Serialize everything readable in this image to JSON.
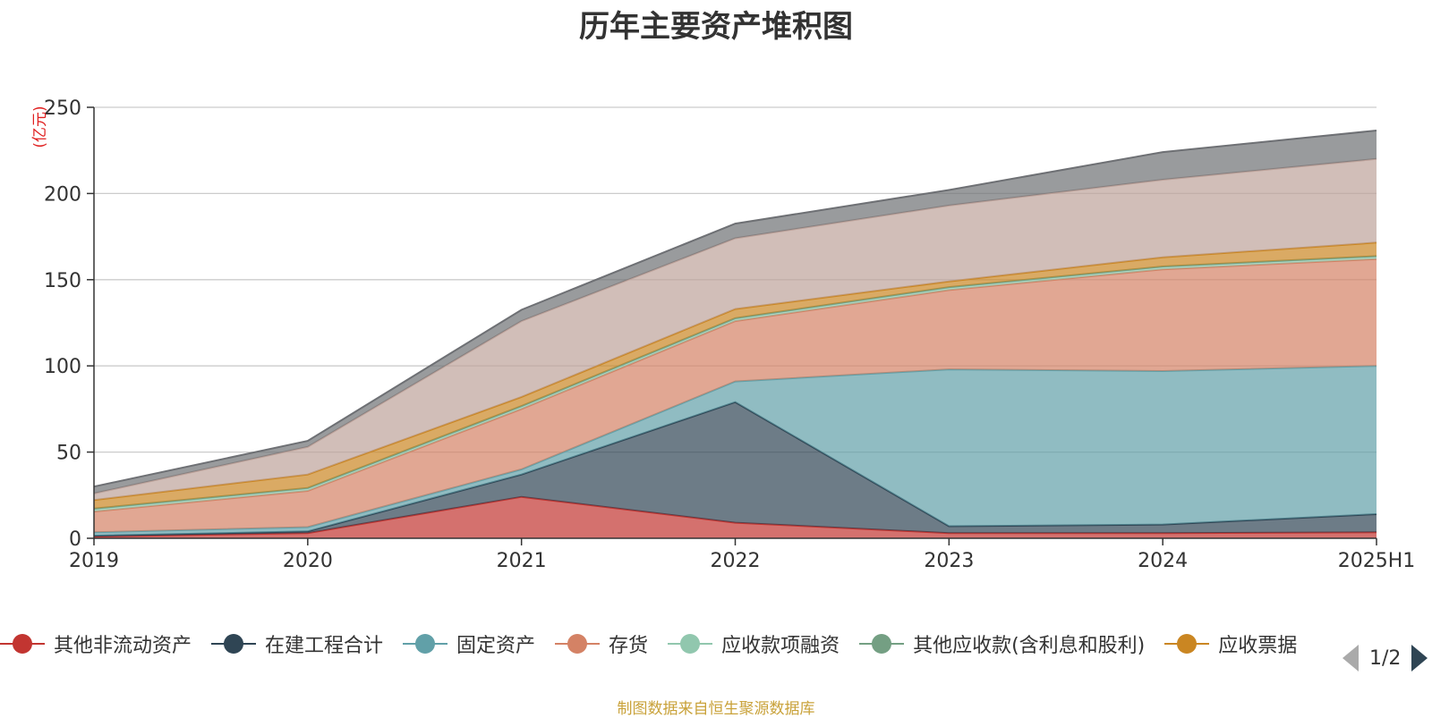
{
  "chart_data": {
    "type": "area",
    "stacked": true,
    "title": "历年主要资产堆积图",
    "ylabel": "(亿元)",
    "xlabel": "",
    "x": [
      "2019",
      "2020",
      "2021",
      "2022",
      "2023",
      "2024",
      "2025H1"
    ],
    "ylim": [
      0,
      250
    ],
    "yticks": [
      0,
      50,
      100,
      150,
      200,
      250
    ],
    "grid": true,
    "legend_position": "bottom",
    "series": [
      {
        "name": "其他非流动资产",
        "color": "#c23531",
        "values": [
          1,
          3,
          24,
          9,
          3,
          3,
          3.5
        ]
      },
      {
        "name": "在建工程合计",
        "color": "#2f4554",
        "values": [
          0.5,
          1,
          13,
          70,
          4,
          5,
          10.5
        ]
      },
      {
        "name": "固定资产",
        "color": "#61a0a8",
        "values": [
          2,
          2.5,
          3,
          12,
          91,
          89,
          86
        ]
      },
      {
        "name": "存货",
        "color": "#d48265",
        "values": [
          12,
          21,
          35,
          35,
          46,
          59,
          62
        ]
      },
      {
        "name": "应收款项融资",
        "color": "#91c7ae",
        "values": [
          1.5,
          1.5,
          1.5,
          1.5,
          1.5,
          1.5,
          1.5
        ]
      },
      {
        "name": "其他应收款(含利息和股利)",
        "color": "#749f83",
        "values": [
          0.2,
          0.2,
          0.2,
          0.2,
          0.2,
          0.2,
          0.2
        ]
      },
      {
        "name": "应收票据",
        "color": "#ca8622",
        "values": [
          5,
          7.8,
          5.3,
          5.3,
          3.3,
          5.3,
          7.8
        ]
      },
      {
        "name": "",
        "color": "#bda29a",
        "values": [
          3.8,
          16,
          44,
          41,
          44,
          45,
          48.5
        ]
      },
      {
        "name": "",
        "color": "#6e7074",
        "values": [
          4,
          3.5,
          6.5,
          8.5,
          9,
          16,
          16.5
        ]
      }
    ]
  },
  "legend": {
    "page": "1/2",
    "visible_items": [
      {
        "label": "其他非流动资产",
        "color": "#c23531"
      },
      {
        "label": "在建工程合计",
        "color": "#2f4554"
      },
      {
        "label": "固定资产",
        "color": "#61a0a8"
      },
      {
        "label": "存货",
        "color": "#d48265"
      },
      {
        "label": "应收款项融资",
        "color": "#91c7ae"
      },
      {
        "label": "其他应收款(含利息和股利)",
        "color": "#749f83"
      },
      {
        "label": "应收票据",
        "color": "#ca8622"
      }
    ],
    "prev_icon": "triangle-left-icon",
    "next_icon": "triangle-right-icon"
  },
  "footer": {
    "source": "制图数据来自恒生聚源数据库"
  }
}
